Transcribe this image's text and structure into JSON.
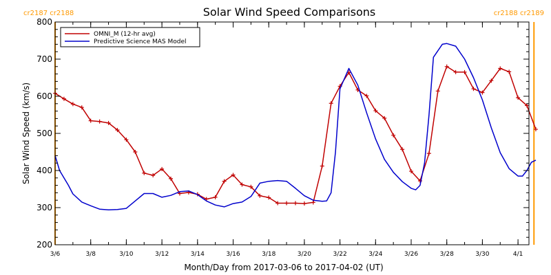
{
  "chart_data": {
    "type": "line",
    "title": "Solar Wind Speed Comparisons",
    "xlabel": "Month/Day from 2017-03-06 to 2017-04-02 (UT)",
    "ylabel": "Solar Wind Speed (km/s)",
    "xlim": [
      "2017-03-06",
      "2017-04-02"
    ],
    "ylim": [
      200,
      800
    ],
    "yticks": [
      200,
      300,
      400,
      500,
      600,
      700,
      800
    ],
    "xticks": [
      {
        "date": "2017-03-06",
        "label": "3/6"
      },
      {
        "date": "2017-03-08",
        "label": "3/8"
      },
      {
        "date": "2017-03-10",
        "label": "3/10"
      },
      {
        "date": "2017-03-12",
        "label": "3/12"
      },
      {
        "date": "2017-03-14",
        "label": "3/14"
      },
      {
        "date": "2017-03-16",
        "label": "3/16"
      },
      {
        "date": "2017-03-18",
        "label": "3/18"
      },
      {
        "date": "2017-03-20",
        "label": "3/20"
      },
      {
        "date": "2017-03-22",
        "label": "3/22"
      },
      {
        "date": "2017-03-24",
        "label": "3/24"
      },
      {
        "date": "2017-03-26",
        "label": "3/26"
      },
      {
        "date": "2017-03-28",
        "label": "3/28"
      },
      {
        "date": "2017-03-30",
        "label": "3/30"
      },
      {
        "date": "2017-04-01",
        "label": "4/1"
      }
    ],
    "grid": false,
    "legend_position": "top-left",
    "carrington_markers": [
      {
        "date": "2017-03-06 00:00",
        "label": "cr2187 cr2188",
        "side": "left"
      },
      {
        "date": "2017-04-01 21:30",
        "label": "cr2188 cr2189",
        "side": "right"
      }
    ],
    "series": [
      {
        "name": "OMNI_M (12-hr avg)",
        "color": "#C00000",
        "marker": "plus",
        "points": [
          [
            "2017-03-06 00:00",
            608
          ],
          [
            "2017-03-06 12:00",
            593
          ],
          [
            "2017-03-07 00:00",
            579
          ],
          [
            "2017-03-07 12:00",
            570
          ],
          [
            "2017-03-08 00:00",
            534
          ],
          [
            "2017-03-08 12:00",
            532
          ],
          [
            "2017-03-09 00:00",
            528
          ],
          [
            "2017-03-09 12:00",
            509
          ],
          [
            "2017-03-10 00:00",
            483
          ],
          [
            "2017-03-10 12:00",
            450
          ],
          [
            "2017-03-11 00:00",
            393
          ],
          [
            "2017-03-11 12:00",
            387
          ],
          [
            "2017-03-12 00:00",
            404
          ],
          [
            "2017-03-12 12:00",
            378
          ],
          [
            "2017-03-13 00:00",
            338
          ],
          [
            "2017-03-13 12:00",
            341
          ],
          [
            "2017-03-14 00:00",
            336
          ],
          [
            "2017-03-14 12:00",
            323
          ],
          [
            "2017-03-15 00:00",
            328
          ],
          [
            "2017-03-15 12:00",
            371
          ],
          [
            "2017-03-16 00:00",
            388
          ],
          [
            "2017-03-16 12:00",
            362
          ],
          [
            "2017-03-17 00:00",
            356
          ],
          [
            "2017-03-17 12:00",
            332
          ],
          [
            "2017-03-18 00:00",
            327
          ],
          [
            "2017-03-18 12:00",
            312
          ],
          [
            "2017-03-19 00:00",
            312
          ],
          [
            "2017-03-19 12:00",
            312
          ],
          [
            "2017-03-20 00:00",
            311
          ],
          [
            "2017-03-20 12:00",
            314
          ],
          [
            "2017-03-21 00:00",
            412
          ],
          [
            "2017-03-21 12:00",
            581
          ],
          [
            "2017-03-22 00:00",
            627
          ],
          [
            "2017-03-22 12:00",
            664
          ],
          [
            "2017-03-23 00:00",
            617
          ],
          [
            "2017-03-23 12:00",
            601
          ],
          [
            "2017-03-24 00:00",
            561
          ],
          [
            "2017-03-24 12:00",
            541
          ],
          [
            "2017-03-25 00:00",
            495
          ],
          [
            "2017-03-25 12:00",
            457
          ],
          [
            "2017-03-26 00:00",
            398
          ],
          [
            "2017-03-26 12:00",
            372
          ],
          [
            "2017-03-27 00:00",
            446
          ],
          [
            "2017-03-27 12:00",
            614
          ],
          [
            "2017-03-28 00:00",
            680
          ],
          [
            "2017-03-28 12:00",
            665
          ],
          [
            "2017-03-29 00:00",
            665
          ],
          [
            "2017-03-29 12:00",
            620
          ],
          [
            "2017-03-30 00:00",
            610
          ],
          [
            "2017-03-30 12:00",
            642
          ],
          [
            "2017-03-31 00:00",
            675
          ],
          [
            "2017-03-31 12:00",
            666
          ],
          [
            "2017-04-01 00:00",
            596
          ],
          [
            "2017-04-01 12:00",
            575
          ],
          [
            "2017-04-02 00:00",
            511
          ]
        ]
      },
      {
        "name": "Predictive Science MAS Model",
        "color": "#0000CC",
        "marker": "none",
        "points": [
          [
            "2017-03-06 00:00",
            440
          ],
          [
            "2017-03-06 06:00",
            400
          ],
          [
            "2017-03-06 18:00",
            360
          ],
          [
            "2017-03-07 00:00",
            337
          ],
          [
            "2017-03-07 12:00",
            315
          ],
          [
            "2017-03-08 00:00",
            305
          ],
          [
            "2017-03-08 12:00",
            296
          ],
          [
            "2017-03-09 00:00",
            294
          ],
          [
            "2017-03-09 12:00",
            295
          ],
          [
            "2017-03-10 00:00",
            298
          ],
          [
            "2017-03-10 12:00",
            318
          ],
          [
            "2017-03-11 00:00",
            338
          ],
          [
            "2017-03-11 12:00",
            338
          ],
          [
            "2017-03-12 00:00",
            328
          ],
          [
            "2017-03-12 12:00",
            333
          ],
          [
            "2017-03-13 00:00",
            343
          ],
          [
            "2017-03-13 12:00",
            345
          ],
          [
            "2017-03-14 00:00",
            335
          ],
          [
            "2017-03-14 12:00",
            318
          ],
          [
            "2017-03-15 00:00",
            307
          ],
          [
            "2017-03-15 12:00",
            302
          ],
          [
            "2017-03-16 00:00",
            311
          ],
          [
            "2017-03-16 12:00",
            315
          ],
          [
            "2017-03-17 00:00",
            330
          ],
          [
            "2017-03-17 12:00",
            366
          ],
          [
            "2017-03-18 00:00",
            371
          ],
          [
            "2017-03-18 12:00",
            373
          ],
          [
            "2017-03-19 00:00",
            371
          ],
          [
            "2017-03-19 12:00",
            352
          ],
          [
            "2017-03-20 00:00",
            332
          ],
          [
            "2017-03-20 12:00",
            320
          ],
          [
            "2017-03-21 00:00",
            317
          ],
          [
            "2017-03-21 06:00",
            318
          ],
          [
            "2017-03-21 12:00",
            340
          ],
          [
            "2017-03-21 18:00",
            450
          ],
          [
            "2017-03-22 00:00",
            620
          ],
          [
            "2017-03-22 12:00",
            675
          ],
          [
            "2017-03-23 00:00",
            630
          ],
          [
            "2017-03-23 12:00",
            555
          ],
          [
            "2017-03-24 00:00",
            485
          ],
          [
            "2017-03-24 12:00",
            430
          ],
          [
            "2017-03-25 00:00",
            395
          ],
          [
            "2017-03-25 12:00",
            370
          ],
          [
            "2017-03-26 00:00",
            352
          ],
          [
            "2017-03-26 06:00",
            348
          ],
          [
            "2017-03-26 12:00",
            360
          ],
          [
            "2017-03-26 18:00",
            420
          ],
          [
            "2017-03-27 00:00",
            550
          ],
          [
            "2017-03-27 06:00",
            705
          ],
          [
            "2017-03-27 18:00",
            740
          ],
          [
            "2017-03-28 00:00",
            742
          ],
          [
            "2017-03-28 12:00",
            735
          ],
          [
            "2017-03-29 00:00",
            700
          ],
          [
            "2017-03-29 12:00",
            650
          ],
          [
            "2017-03-30 00:00",
            590
          ],
          [
            "2017-03-30 12:00",
            515
          ],
          [
            "2017-03-31 00:00",
            448
          ],
          [
            "2017-03-31 12:00",
            405
          ],
          [
            "2017-04-01 00:00",
            385
          ],
          [
            "2017-04-01 06:00",
            385
          ],
          [
            "2017-04-01 12:00",
            400
          ],
          [
            "2017-04-01 18:00",
            422
          ],
          [
            "2017-04-02 00:00",
            428
          ]
        ]
      }
    ]
  }
}
